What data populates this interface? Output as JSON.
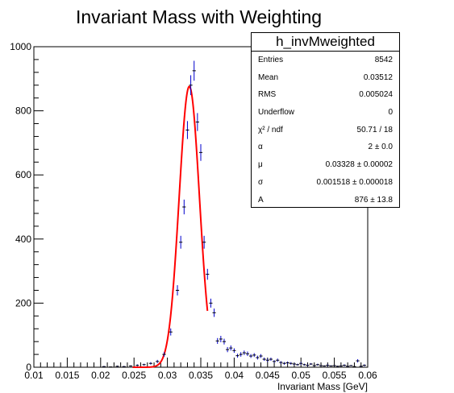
{
  "title": "Invariant Mass with Weighting",
  "stats_box": {
    "title": "h_invMweighted",
    "rows": [
      {
        "label": "Entries",
        "value": "8542"
      },
      {
        "label": "Mean",
        "value": "0.03512"
      },
      {
        "label": "RMS",
        "value": "0.005024"
      },
      {
        "label": "Underflow",
        "value": "0"
      },
      {
        "label": "χ² / ndf",
        "value": "50.71 / 18"
      },
      {
        "label": "α",
        "value": "2 ± 0.0"
      },
      {
        "label": "μ",
        "value": "0.03328 ± 0.00002"
      },
      {
        "label": "σ",
        "value": "0.001518 ± 0.000018"
      },
      {
        "label": "A",
        "value": "876 ± 13.8"
      }
    ]
  },
  "chart_data": {
    "type": "scatter",
    "title": "Invariant Mass with Weighting",
    "xlabel": "Invariant Mass [GeV]",
    "ylabel": "",
    "xlim": [
      0.01,
      0.06
    ],
    "ylim": [
      0,
      1000
    ],
    "x_ticks": [
      "0.01",
      "0.015",
      "0.02",
      "0.025",
      "0.03",
      "0.035",
      "0.04",
      "0.045",
      "0.05",
      "0.055",
      "0.06"
    ],
    "y_ticks": [
      "0",
      "200",
      "400",
      "600",
      "800",
      "1000"
    ],
    "grid": false,
    "colors": {
      "points": "#0000cc",
      "fit": "#ff0000",
      "axis": "#000000"
    },
    "series": [
      {
        "type": "points_with_errors",
        "x": [
          0.0205,
          0.0215,
          0.0225,
          0.0235,
          0.0245,
          0.0255,
          0.0265,
          0.0275,
          0.0285,
          0.0295,
          0.0305,
          0.0315,
          0.032,
          0.0325,
          0.033,
          0.0335,
          0.034,
          0.0345,
          0.035,
          0.0355,
          0.036,
          0.0365,
          0.037,
          0.0375,
          0.038,
          0.0385,
          0.039,
          0.0395,
          0.04,
          0.0405,
          0.041,
          0.0415,
          0.042,
          0.0425,
          0.043,
          0.0435,
          0.044,
          0.0445,
          0.045,
          0.0455,
          0.046,
          0.0465,
          0.047,
          0.0475,
          0.048,
          0.0485,
          0.049,
          0.0495,
          0.05,
          0.0505,
          0.051,
          0.0515,
          0.052,
          0.0525,
          0.053,
          0.0535,
          0.054,
          0.0545,
          0.055,
          0.0555,
          0.056,
          0.0565,
          0.057,
          0.0575,
          0.058,
          0.0585,
          0.059,
          0.0595
        ],
        "y": [
          2,
          1,
          3,
          2,
          4,
          6,
          8,
          12,
          18,
          40,
          110,
          240,
          390,
          500,
          740,
          880,
          925,
          765,
          670,
          390,
          290,
          200,
          170,
          82,
          88,
          80,
          55,
          60,
          52,
          36,
          40,
          45,
          42,
          35,
          38,
          30,
          35,
          25,
          22,
          25,
          18,
          22,
          15,
          12,
          14,
          12,
          10,
          8,
          12,
          8,
          6,
          10,
          5,
          8,
          5,
          4,
          6,
          4,
          5,
          3,
          4,
          6,
          3,
          5,
          2,
          20,
          3,
          6
        ],
        "yerr": [
          2,
          1,
          2,
          2,
          2,
          3,
          3,
          4,
          5,
          7,
          11,
          16,
          20,
          23,
          28,
          31,
          31,
          28,
          26,
          20,
          17,
          14,
          13,
          9,
          10,
          9,
          8,
          8,
          7,
          6,
          7,
          7,
          7,
          6,
          6,
          6,
          6,
          5,
          5,
          5,
          4,
          5,
          4,
          4,
          4,
          4,
          3,
          3,
          4,
          3,
          3,
          3,
          2,
          3,
          2,
          2,
          3,
          2,
          2,
          2,
          2,
          3,
          2,
          2,
          1,
          5,
          2,
          3
        ]
      },
      {
        "type": "fit_curve",
        "function": "gaussian",
        "amplitude": 876,
        "mean": 0.03328,
        "sigma": 0.001518,
        "x_range": [
          0.0248,
          0.036
        ]
      }
    ]
  }
}
